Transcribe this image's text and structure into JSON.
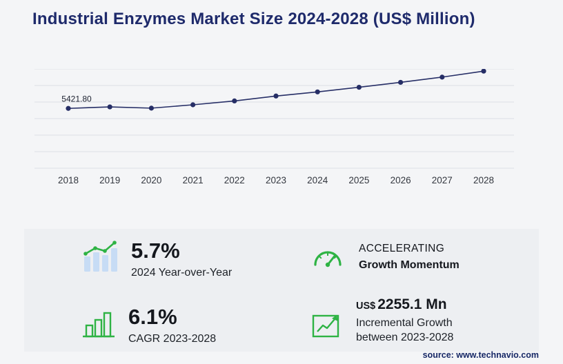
{
  "header": {
    "title": "Industrial Enzymes Market Size 2024-2028 (US$ Million)"
  },
  "chart_data": {
    "type": "line",
    "title": "Industrial Enzymes Market Size 2024-2028 (US$ Million)",
    "x": [
      2018,
      2019,
      2020,
      2021,
      2022,
      2023,
      2024,
      2025,
      2026,
      2027,
      2028
    ],
    "series": [
      {
        "name": "Market size (US$ Million)",
        "values": [
          5421.8,
          5560,
          5445,
          5750,
          6100,
          6545,
          6918,
          7338,
          7784,
          8257,
          8800
        ]
      }
    ],
    "first_point_label": "5421.80",
    "ylim": [
      0,
      9000
    ],
    "gridlines": 7,
    "grid": true,
    "legend_position": "none",
    "line_color": "#262e66",
    "grid_color": "#dcdfe5",
    "tick_color": "#33373f",
    "label_color": "#1c2130"
  },
  "stats": {
    "yoy": {
      "value": "5.7%",
      "label": "2024 Year-over-Year"
    },
    "momentum": {
      "line1": "ACCELERATING",
      "line2": "Growth Momentum"
    },
    "cagr": {
      "value": "6.1%",
      "label": "CAGR 2023-2028"
    },
    "incremental": {
      "currency": "US$",
      "value": "2255.1 Mn",
      "line1": "Incremental Growth",
      "line2": "between 2023-2028"
    }
  },
  "footer": {
    "source": "source: www.technavio.com"
  },
  "colors": {
    "accent_green": "#2eb344",
    "navy": "#1e2a6b",
    "bar_blue": "#c7dcf5"
  }
}
